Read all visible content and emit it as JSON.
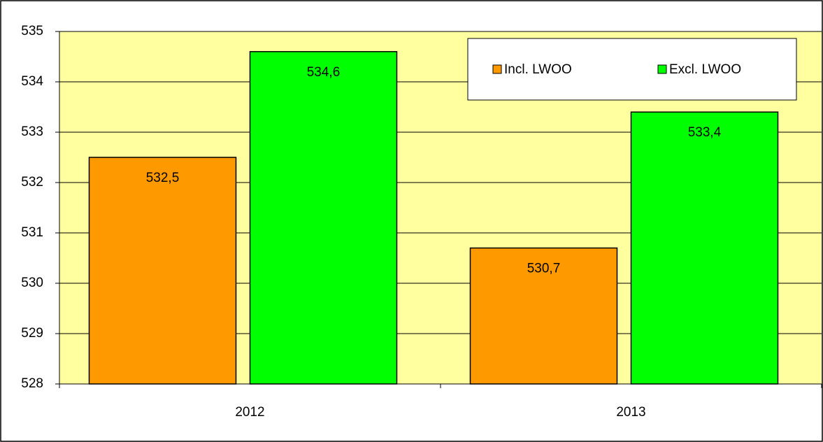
{
  "chart_data": {
    "type": "bar",
    "categories": [
      "2012",
      "2013"
    ],
    "series": [
      {
        "name": "Incl. LWOO",
        "color": "#ff9900",
        "values": [
          532.5,
          530.7
        ],
        "value_labels": [
          "532,5",
          "530,7"
        ]
      },
      {
        "name": "Excl. LWOO",
        "color": "#00ff00",
        "values": [
          534.6,
          533.4
        ],
        "value_labels": [
          "534,6",
          "533,4"
        ]
      }
    ],
    "ylim": [
      528,
      535
    ],
    "yticks": [
      528,
      529,
      530,
      531,
      532,
      533,
      534,
      535
    ],
    "grid": true,
    "legend": "upper right",
    "background": "#ffffa0"
  }
}
